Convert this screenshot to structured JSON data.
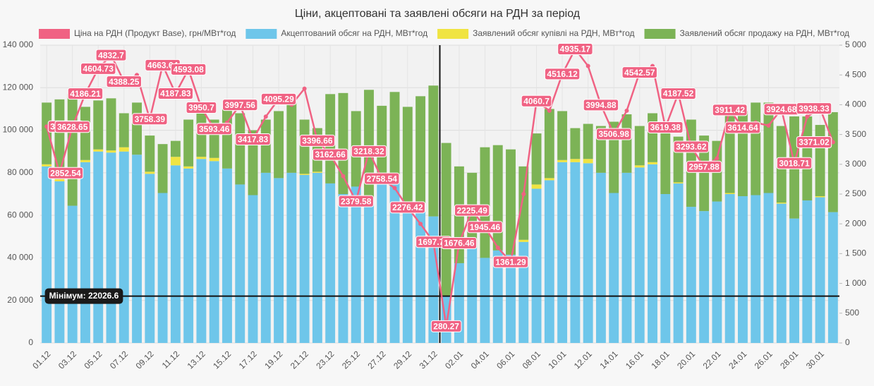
{
  "chart_data": {
    "type": "bar",
    "title": "Ціни, акцептовані та заявлені обсяги на РДН за період",
    "legend": "top",
    "grid": true,
    "stacked": true,
    "categories": [
      "01.12",
      null,
      "03.12",
      null,
      "05.12",
      null,
      "07.12",
      null,
      "09.12",
      null,
      "11.12",
      null,
      "13.12",
      null,
      "15.12",
      null,
      "17.12",
      null,
      "19.12",
      null,
      "21.12",
      null,
      "23.12",
      null,
      "25.12",
      null,
      "27.12",
      null,
      "29.12",
      null,
      "31.12",
      null,
      "02.01",
      null,
      "04.01",
      null,
      "06.01",
      null,
      "08.01",
      null,
      "10.01",
      null,
      "12.01",
      null,
      "14.01",
      null,
      "16.01",
      null,
      "18.01",
      null,
      "20.01",
      null,
      "22.01",
      null,
      "24.01",
      null,
      "26.01",
      null,
      "28.01",
      null,
      "30.01",
      null
    ],
    "ylim": [
      0,
      140000
    ],
    "yticks": [
      0,
      {
        "value": 20000,
        "label": "20 000"
      },
      {
        "value": 40000,
        "label": "40 000"
      },
      {
        "value": 60000,
        "label": "60 000"
      },
      {
        "value": 80000,
        "label": "80 000"
      },
      {
        "value": 100000,
        "label": "100 000"
      },
      {
        "value": 120000,
        "label": "120 000"
      },
      {
        "value": 140000,
        "label": "140 000"
      }
    ],
    "y2lim": [
      0,
      5000
    ],
    "y2ticks": [
      0,
      500,
      {
        "value": 1000,
        "label": "1 000"
      },
      {
        "value": 1500,
        "label": "1 500"
      },
      {
        "value": 2000,
        "label": "2 000"
      },
      {
        "value": 2500,
        "label": "2 500"
      },
      {
        "value": 3000,
        "label": "3 000"
      },
      {
        "value": 3500,
        "label": "3 500"
      },
      {
        "value": 4000,
        "label": "4 000"
      },
      {
        "value": 4500,
        "label": "4 500"
      },
      {
        "value": 5000,
        "label": "5 000"
      }
    ],
    "series": [
      {
        "name": "Ціна на РДН (Продукт Base), грн/МВт*год",
        "type": "line",
        "axis": "y2",
        "color": "#f06283",
        "values": [
          3634.63,
          2852.54,
          3628.65,
          4186.21,
          4604.73,
          4832.7,
          4388.25,
          4500,
          3758.39,
          4663.64,
          4187.83,
          4593.08,
          3950.7,
          3593.46,
          3700,
          3997.56,
          3417.83,
          3800,
          4095.29,
          4000,
          4270,
          3396.66,
          3162.66,
          2800,
          2379.58,
          3218.32,
          2758.54,
          2600,
          2276.42,
          2000,
          1697.71,
          280.27,
          1676.46,
          2225.49,
          1945.46,
          1600,
          1361.29,
          2500,
          4060.7,
          3900,
          4516.12,
          4935.17,
          4650,
          3994.88,
          3506.98,
          3900,
          4542.57,
          4650,
          3619.38,
          4187.52,
          3293.62,
          2957.88,
          3100,
          3911.42,
          3614.64,
          3700,
          3650,
          3924.68,
          3018.71,
          3800,
          3938.33,
          3371.02
        ],
        "value_labels": [
          "3634.63",
          "2852.54",
          "3628.65",
          "4186.21",
          "4604.73",
          "4832.7",
          "4388.25",
          null,
          "3758.39",
          "4663.64",
          "4187.83",
          "4593.08",
          "3950.7",
          "3593.46",
          null,
          "3997.56",
          "3417.83",
          null,
          "4095.29",
          null,
          null,
          "3396.66",
          "3162.66",
          null,
          "2379.58",
          "3218.32",
          "2758.54",
          null,
          "2276.42",
          null,
          "1697.71",
          "280.27",
          "1676.46",
          "2225.49",
          "1945.46",
          null,
          "1361.29",
          null,
          "4060.7",
          null,
          "4516.12",
          "4935.17",
          null,
          "3994.88",
          "3506.98",
          null,
          "4542.57",
          null,
          "3619.38",
          "4187.52",
          "3293.62",
          "2957.88",
          null,
          "3911.42",
          "3614.64",
          null,
          null,
          "3924.68",
          "3018.71",
          null,
          "3938.33",
          "3371.02"
        ]
      },
      {
        "name": "Акцептований обсяг на РДН, МВт*год",
        "type": "bar",
        "color": "#6ec6ea",
        "values": [
          83000,
          76000,
          64500,
          85000,
          90000,
          89500,
          90000,
          88500,
          79500,
          70500,
          83500,
          82000,
          86500,
          85500,
          82000,
          74500,
          69500,
          80000,
          77500,
          80000,
          79000,
          80000,
          75000,
          70000,
          73500,
          67000,
          74500,
          75000,
          62000,
          63000,
          59500,
          22026.6,
          37500,
          45000,
          40000,
          43500,
          41500,
          47500,
          72500,
          76500,
          85000,
          85000,
          84500,
          80000,
          70500,
          80000,
          82500,
          84000,
          70000,
          75000,
          64000,
          62000,
          66500,
          70000,
          69000,
          69500,
          70500,
          65500,
          58500,
          67000,
          68500,
          61500
        ]
      },
      {
        "name": "Заявлений обсяг купівлі на РДН, МВт*год",
        "type": "bar",
        "color": "#f0e442",
        "values": [
          1000,
          1000,
          0,
          1000,
          1000,
          1000,
          2000,
          0,
          1000,
          0,
          4000,
          1000,
          1000,
          1500,
          0,
          0,
          0,
          0,
          0,
          0,
          500,
          500,
          0,
          0,
          0,
          0,
          0,
          0,
          0,
          0,
          0,
          0,
          0,
          0,
          0,
          0,
          0,
          1000,
          2000,
          1000,
          1000,
          1500,
          2000,
          0,
          0,
          0,
          1000,
          1000,
          0,
          500,
          0,
          0,
          0,
          500,
          0,
          0,
          0,
          500,
          0,
          0,
          500,
          0
        ]
      },
      {
        "name": "Заявлений обсяг продажу на РДН, МВт*год",
        "type": "bar",
        "color": "#7cb356",
        "values": [
          29000,
          37500,
          52500,
          25000,
          23000,
          24500,
          16000,
          24500,
          17000,
          23000,
          7500,
          22000,
          23000,
          18000,
          28000,
          33500,
          30500,
          25000,
          31500,
          33000,
          25500,
          20500,
          42000,
          47500,
          35500,
          52000,
          37000,
          43000,
          49000,
          53000,
          61500,
          72000,
          45500,
          35000,
          52000,
          49500,
          49500,
          34500,
          24000,
          32500,
          23000,
          14500,
          16500,
          22000,
          33500,
          27500,
          18500,
          23000,
          28500,
          21500,
          41000,
          35500,
          28500,
          37500,
          40000,
          43500,
          42500,
          36000,
          48000,
          39500,
          33500,
          47000
        ]
      }
    ],
    "annotation": {
      "value": 22026.6,
      "label": "Мінімум: 22026.6"
    }
  }
}
